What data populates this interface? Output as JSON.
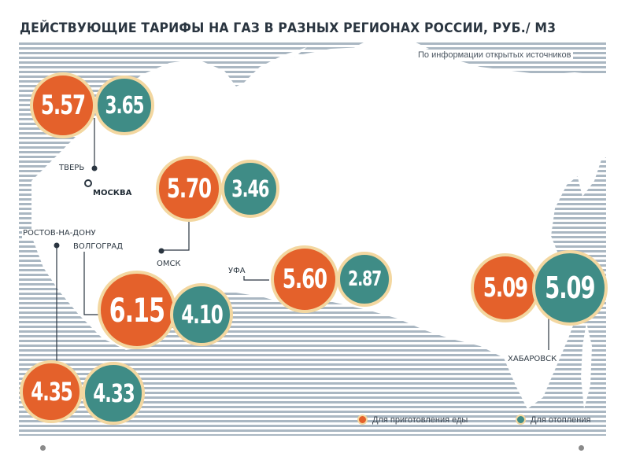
{
  "title": "ДЕЙСТВУЮЩИЕ ТАРИФЫ НА ГАЗ В РАЗНЫХ РЕГИОНАХ РОССИИ, РУБ./ М3",
  "source": "По информации открытых источников",
  "cities": {
    "tver": "ТВЕРЬ",
    "moscow": "МОСКВА",
    "rostov": "РОСТОВ-НА-ДОНУ",
    "volgograd": "ВОЛГОГРАД",
    "omsk": "ОМСК",
    "ufa": "УФА",
    "khabarovsk": "ХАБАРОВСК"
  },
  "tariffs": {
    "moscow": {
      "cooking": "5.57",
      "heating": "3.65"
    },
    "omsk": {
      "cooking": "5.70",
      "heating": "3.46"
    },
    "ufa": {
      "cooking": "5.60",
      "heating": "2.87"
    },
    "volgograd": {
      "cooking": "6.15",
      "heating": "4.10"
    },
    "rostov": {
      "cooking": "4.35",
      "heating": "4.33"
    },
    "khabarovsk": {
      "cooking": "5.09",
      "heating": "5.09"
    }
  },
  "legend": {
    "cooking": "Для приготовления еды",
    "heating": "Для отопления"
  },
  "colors": {
    "cooking": "#e4612b",
    "heating": "#3f8c86",
    "ring": "#f3d7a0",
    "stripes": "#aab7c2"
  }
}
